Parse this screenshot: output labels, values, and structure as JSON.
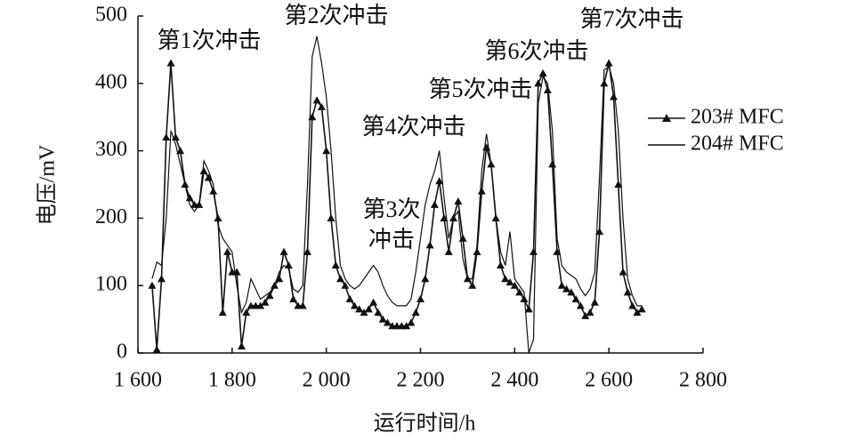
{
  "chart_data": {
    "type": "line",
    "x_label": "运行时间/h",
    "y_label": "电压/mV",
    "xlim": [
      1600,
      2800
    ],
    "ylim": [
      0,
      500
    ],
    "xticks": [
      {
        "value": 1600,
        "label": "1 600"
      },
      {
        "value": 1800,
        "label": "1 800"
      },
      {
        "value": 2000,
        "label": "2 000"
      },
      {
        "value": 2200,
        "label": "2 200"
      },
      {
        "value": 2400,
        "label": "2 400"
      },
      {
        "value": 2600,
        "label": "2 600"
      },
      {
        "value": 2800,
        "label": "2 800"
      }
    ],
    "yticks": [
      0,
      100,
      200,
      300,
      400,
      500
    ],
    "annotations": [
      [
        "第1次冲击"
      ],
      [
        "第2次冲击"
      ],
      [
        "第3次",
        "冲击"
      ],
      [
        "第4次冲击"
      ],
      [
        "第5次冲击"
      ],
      [
        "第6次冲击"
      ],
      [
        "第7次冲击"
      ]
    ],
    "legend": "right",
    "x": [
      1630,
      1640,
      1650,
      1660,
      1670,
      1680,
      1690,
      1700,
      1710,
      1720,
      1730,
      1740,
      1750,
      1760,
      1770,
      1780,
      1790,
      1800,
      1810,
      1820,
      1830,
      1840,
      1850,
      1860,
      1870,
      1880,
      1890,
      1900,
      1910,
      1920,
      1930,
      1940,
      1950,
      1960,
      1970,
      1980,
      1990,
      2000,
      2010,
      2020,
      2030,
      2040,
      2050,
      2060,
      2070,
      2080,
      2090,
      2100,
      2110,
      2120,
      2130,
      2140,
      2150,
      2160,
      2170,
      2180,
      2190,
      2200,
      2210,
      2220,
      2230,
      2240,
      2250,
      2260,
      2270,
      2280,
      2290,
      2300,
      2310,
      2320,
      2330,
      2340,
      2350,
      2360,
      2370,
      2380,
      2390,
      2400,
      2410,
      2420,
      2430,
      2440,
      2450,
      2460,
      2470,
      2480,
      2490,
      2500,
      2510,
      2520,
      2530,
      2540,
      2550,
      2560,
      2570,
      2580,
      2590,
      2600,
      2610,
      2620,
      2630,
      2640,
      2650,
      2660,
      2670
    ],
    "series": [
      {
        "name": "203# MFC",
        "color": "#111111",
        "marker": "triangle",
        "values": [
          100,
          5,
          110,
          320,
          430,
          320,
          300,
          250,
          230,
          220,
          220,
          270,
          260,
          240,
          200,
          60,
          150,
          120,
          120,
          10,
          60,
          70,
          70,
          70,
          75,
          85,
          100,
          110,
          150,
          130,
          80,
          70,
          70,
          150,
          350,
          375,
          365,
          300,
          200,
          130,
          110,
          100,
          80,
          70,
          65,
          60,
          65,
          75,
          60,
          50,
          45,
          40,
          40,
          40,
          40,
          45,
          60,
          80,
          110,
          160,
          220,
          255,
          200,
          150,
          200,
          225,
          170,
          110,
          100,
          150,
          240,
          305,
          280,
          200,
          130,
          110,
          105,
          100,
          90,
          80,
          65,
          150,
          400,
          415,
          390,
          280,
          150,
          100,
          95,
          90,
          80,
          70,
          55,
          60,
          75,
          180,
          400,
          430,
          380,
          250,
          120,
          90,
          70,
          60,
          65
        ]
      },
      {
        "name": "204# MFC",
        "color": "#111111",
        "marker": "none",
        "values": [
          110,
          135,
          130,
          200,
          330,
          310,
          280,
          250,
          220,
          210,
          220,
          285,
          270,
          250,
          190,
          170,
          160,
          150,
          100,
          60,
          75,
          110,
          95,
          80,
          85,
          90,
          100,
          120,
          130,
          125,
          95,
          90,
          100,
          250,
          440,
          470,
          430,
          380,
          300,
          200,
          130,
          110,
          100,
          95,
          100,
          110,
          120,
          130,
          120,
          100,
          85,
          75,
          70,
          70,
          70,
          80,
          120,
          170,
          220,
          250,
          270,
          300,
          230,
          170,
          200,
          210,
          140,
          110,
          110,
          160,
          270,
          325,
          280,
          200,
          150,
          130,
          180,
          110,
          100,
          90,
          0,
          20,
          370,
          410,
          400,
          330,
          170,
          130,
          120,
          115,
          110,
          95,
          85,
          95,
          120,
          260,
          420,
          425,
          400,
          330,
          200,
          110,
          85,
          70,
          70
        ]
      }
    ]
  }
}
